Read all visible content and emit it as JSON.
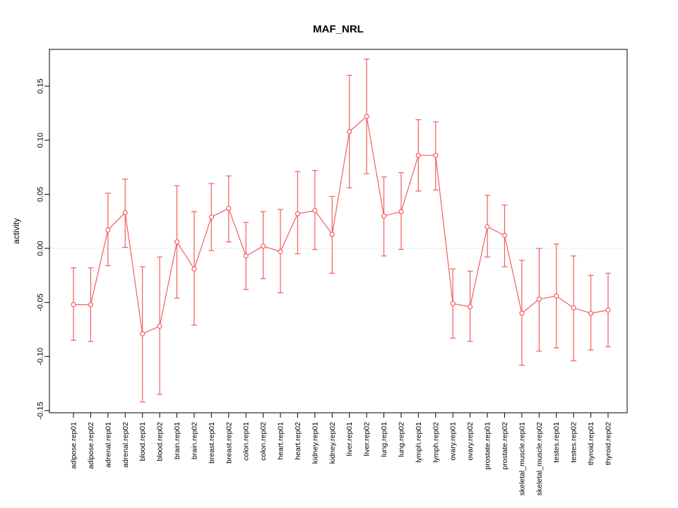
{
  "chart_data": {
    "type": "line",
    "title": "MAF_NRL",
    "xlabel": "",
    "ylabel": "activity",
    "ylim": [
      -0.152,
      0.184
    ],
    "yticks": [
      -0.15,
      -0.1,
      -0.05,
      0.0,
      0.05,
      0.1,
      0.15
    ],
    "grid": false,
    "legend": "none",
    "zero_line": true,
    "marker": "open-circle",
    "series_color": "#f15e5e",
    "zero_line_color": "#c8c8c8",
    "axis_color": "#000000",
    "categories": [
      "adipose.rep01",
      "adipose.rep02",
      "adrenal.rep01",
      "adrenal.rep02",
      "blood.rep01",
      "blood.rep02",
      "brain.rep01",
      "brain.rep02",
      "breast.rep01",
      "breast.rep02",
      "colon.rep01",
      "colon.rep02",
      "heart.rep01",
      "heart.rep02",
      "kidney.rep01",
      "kidney.rep02",
      "liver.rep01",
      "liver.rep02",
      "lung.rep01",
      "lung.rep02",
      "lymph.rep01",
      "lymph.rep02",
      "ovary.rep01",
      "ovary.rep02",
      "prostate.rep01",
      "prostate.rep02",
      "skeletal_muscle.rep01",
      "skeletal_muscle.rep02",
      "testes.rep01",
      "testes.rep02",
      "thyroid.rep01",
      "thyroid.rep02"
    ],
    "values": [
      -0.052,
      -0.052,
      0.017,
      0.033,
      -0.079,
      -0.072,
      0.006,
      -0.019,
      0.029,
      0.037,
      -0.007,
      0.002,
      -0.003,
      0.032,
      0.035,
      0.013,
      0.108,
      0.122,
      0.03,
      0.034,
      0.086,
      0.086,
      -0.051,
      -0.054,
      0.02,
      0.012,
      -0.06,
      -0.047,
      -0.044,
      -0.055,
      -0.06,
      -0.057
    ],
    "ci_low": [
      -0.085,
      -0.086,
      -0.016,
      0.001,
      -0.142,
      -0.135,
      -0.046,
      -0.071,
      -0.002,
      0.006,
      -0.038,
      -0.028,
      -0.041,
      -0.005,
      -0.001,
      -0.023,
      0.056,
      0.069,
      -0.007,
      -0.001,
      0.053,
      0.054,
      -0.083,
      -0.086,
      -0.008,
      -0.017,
      -0.108,
      -0.095,
      -0.092,
      -0.104,
      -0.094,
      -0.091
    ],
    "ci_high": [
      -0.018,
      -0.018,
      0.051,
      0.064,
      -0.017,
      -0.008,
      0.058,
      0.034,
      0.06,
      0.067,
      0.024,
      0.034,
      0.036,
      0.071,
      0.072,
      0.048,
      0.16,
      0.175,
      0.066,
      0.07,
      0.119,
      0.117,
      -0.019,
      -0.021,
      0.049,
      0.04,
      -0.011,
      0.0,
      0.004,
      -0.007,
      -0.025,
      -0.023
    ]
  }
}
